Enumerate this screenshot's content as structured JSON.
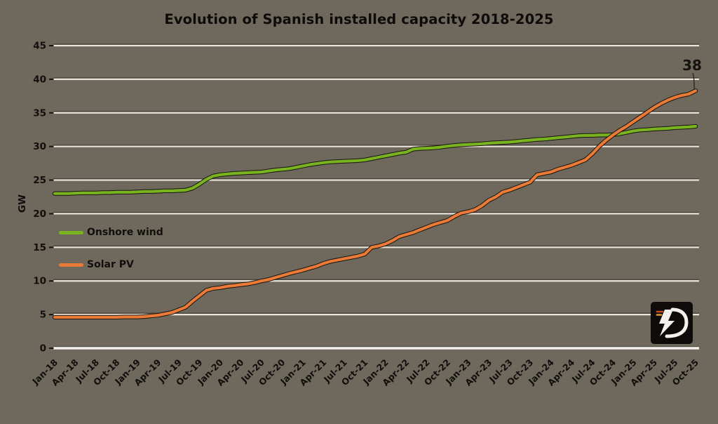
{
  "chart_data": {
    "type": "line",
    "title": "Evolution of Spanish installed capacity 2018-2025",
    "ylabel": "GW",
    "ylim": [
      0,
      45
    ],
    "yticks": [
      0,
      5,
      10,
      15,
      20,
      25,
      30,
      35,
      40,
      45
    ],
    "grid": true,
    "legend_position": "inside-left",
    "x_unit": "month",
    "x_range_labels": [
      "Jan-18",
      "Oct-25"
    ],
    "x_tick_every_months": 3,
    "x_tick_labels": [
      "Jan-18",
      "Apr-18",
      "Jul-18",
      "Oct-18",
      "Jan-19",
      "Apr-19",
      "Jul-19",
      "Oct-19",
      "Jan-20",
      "Apr-20",
      "Jul-20",
      "Oct-20",
      "Jan-21",
      "Apr-21",
      "Jul-21",
      "Oct-21",
      "Jan-22",
      "Apr-22",
      "Jul-22",
      "Oct-22",
      "Jan-23",
      "Apr-23",
      "Jul-23",
      "Oct-23",
      "Jan-24",
      "Apr-24",
      "Jul-24",
      "Oct-24",
      "Jan-25",
      "Apr-25",
      "Jul-25",
      "Oct-25"
    ],
    "series": [
      {
        "name": "Onshore wind",
        "color": "#79B320",
        "values": [
          23.0,
          23.0,
          23.0,
          23.05,
          23.1,
          23.1,
          23.1,
          23.15,
          23.15,
          23.2,
          23.2,
          23.2,
          23.25,
          23.3,
          23.3,
          23.35,
          23.4,
          23.4,
          23.45,
          23.5,
          23.8,
          24.4,
          25.1,
          25.6,
          25.8,
          25.9,
          26.0,
          26.05,
          26.1,
          26.15,
          26.2,
          26.35,
          26.5,
          26.6,
          26.7,
          26.9,
          27.1,
          27.3,
          27.45,
          27.6,
          27.7,
          27.75,
          27.8,
          27.85,
          27.9,
          28.0,
          28.2,
          28.4,
          28.6,
          28.8,
          29.0,
          29.15,
          29.6,
          29.7,
          29.75,
          29.8,
          29.9,
          30.05,
          30.15,
          30.25,
          30.3,
          30.35,
          30.4,
          30.5,
          30.55,
          30.6,
          30.65,
          30.75,
          30.85,
          30.95,
          31.05,
          31.1,
          31.2,
          31.3,
          31.4,
          31.5,
          31.6,
          31.65,
          31.65,
          31.7,
          31.7,
          31.75,
          31.9,
          32.1,
          32.3,
          32.45,
          32.5,
          32.6,
          32.65,
          32.7,
          32.8,
          32.85,
          32.9,
          33.0
        ]
      },
      {
        "name": "Solar PV",
        "color": "#EA7A38",
        "values": [
          4.6,
          4.6,
          4.6,
          4.6,
          4.6,
          4.6,
          4.6,
          4.6,
          4.6,
          4.6,
          4.65,
          4.65,
          4.65,
          4.7,
          4.8,
          4.9,
          5.1,
          5.3,
          5.7,
          6.1,
          7.0,
          7.8,
          8.6,
          8.9,
          9.0,
          9.2,
          9.3,
          9.45,
          9.55,
          9.75,
          10.0,
          10.2,
          10.5,
          10.8,
          11.1,
          11.35,
          11.6,
          11.9,
          12.2,
          12.6,
          12.9,
          13.1,
          13.3,
          13.5,
          13.7,
          14.0,
          15.0,
          15.2,
          15.5,
          16.0,
          16.6,
          16.9,
          17.2,
          17.6,
          18.0,
          18.4,
          18.7,
          19.0,
          19.6,
          20.1,
          20.3,
          20.6,
          21.2,
          22.0,
          22.5,
          23.2,
          23.5,
          23.9,
          24.3,
          24.7,
          25.8,
          26.0,
          26.2,
          26.6,
          26.9,
          27.2,
          27.6,
          28.0,
          28.9,
          30.0,
          30.9,
          31.7,
          32.4,
          33.0,
          33.7,
          34.4,
          35.1,
          35.8,
          36.4,
          36.9,
          37.3,
          37.6,
          37.8,
          38.3
        ]
      }
    ],
    "annotation": {
      "text": "38",
      "series": "Solar PV",
      "at": "last-point"
    }
  },
  "theme": {
    "background": "#6E695C",
    "gridline": "#E7E4DC",
    "grid_shadow": "#46423A",
    "axis_line": "#F4F2EC",
    "tick": "#17150F",
    "text": "#100F0D",
    "line_outline": "#17140E",
    "annotation_leader": "#2A2620",
    "logo_background": "#0D0C0A",
    "logo_glyph": "#F2F1EE",
    "logo_dash_1": "#C44D29",
    "logo_dash_2": "#DD9A33"
  }
}
